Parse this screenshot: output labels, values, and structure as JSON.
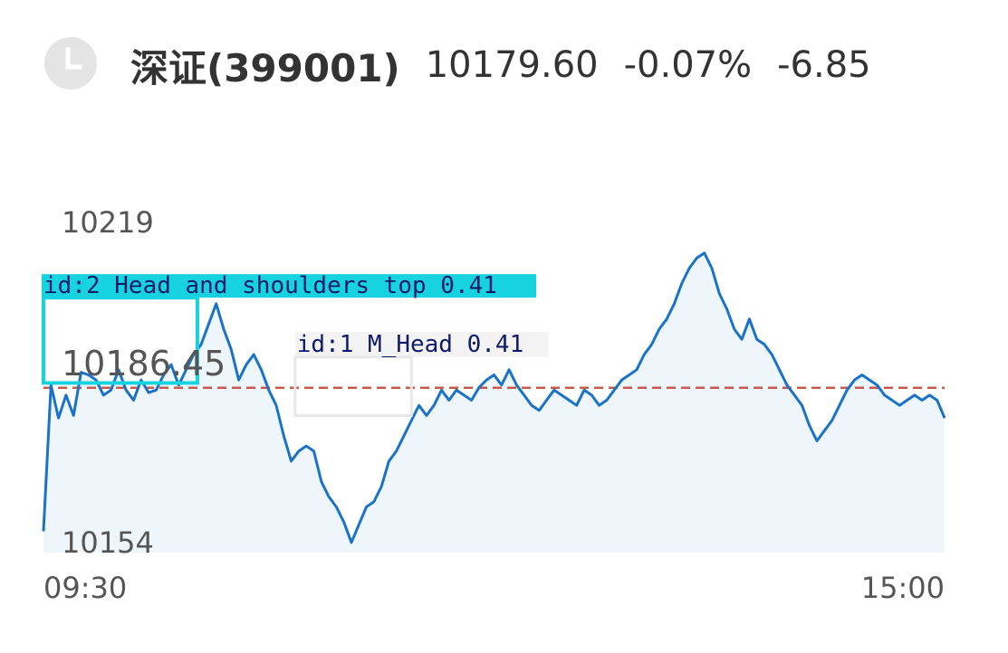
{
  "header": {
    "clock_icon": "clock-icon",
    "title": "深证(399001)",
    "price": "10179.60",
    "change_pct": "-0.07%",
    "change": "-6.85"
  },
  "colors": {
    "line": "#1a73c8",
    "area": "#eef6fc",
    "ref_line": "#c9594b",
    "det2": "#17d3e0",
    "det2_text": "#0f1a6b",
    "det1_box": "#e8e8e8",
    "det1_text": "#0f1a6b"
  },
  "chart_data": {
    "type": "line",
    "title": "",
    "xlabel": "",
    "ylabel": "",
    "x_ticks": [
      "09:30",
      "15:00"
    ],
    "y_top_label": "10219",
    "y_bottom_label": "10154",
    "ref_label": "10186.45",
    "ylim": [
      10154,
      10219
    ],
    "reference_value": 10186.45,
    "x_range": [
      0,
      240
    ],
    "series": [
      {
        "values": [
          [
            0,
            10158.2
          ],
          [
            2,
            10187.0
          ],
          [
            4,
            10180.5
          ],
          [
            6,
            10185.0
          ],
          [
            8,
            10181.0
          ],
          [
            10,
            10189.5
          ],
          [
            12,
            10189.0
          ],
          [
            14,
            10188.0
          ],
          [
            16,
            10185.0
          ],
          [
            18,
            10186.0
          ],
          [
            20,
            10190.0
          ],
          [
            22,
            10186.0
          ],
          [
            24,
            10184.0
          ],
          [
            26,
            10188.0
          ],
          [
            28,
            10185.5
          ],
          [
            30,
            10186.0
          ],
          [
            32,
            10189.0
          ],
          [
            34,
            10191.0
          ],
          [
            36,
            10187.0
          ],
          [
            38,
            10190.0
          ],
          [
            40,
            10193.0
          ],
          [
            42,
            10195.0
          ],
          [
            44,
            10199.0
          ],
          [
            46,
            10203.0
          ],
          [
            48,
            10198.0
          ],
          [
            50,
            10194.0
          ],
          [
            52,
            10188.0
          ],
          [
            54,
            10191.0
          ],
          [
            56,
            10193.0
          ],
          [
            58,
            10190.0
          ],
          [
            60,
            10186.0
          ],
          [
            62,
            10183.0
          ],
          [
            64,
            10177.0
          ],
          [
            66,
            10172.0
          ],
          [
            68,
            10174.0
          ],
          [
            70,
            10175.0
          ],
          [
            72,
            10174.0
          ],
          [
            74,
            10168.0
          ],
          [
            76,
            10165.0
          ],
          [
            78,
            10163.0
          ],
          [
            80,
            10160.0
          ],
          [
            82,
            10156.0
          ],
          [
            84,
            10159.5
          ],
          [
            86,
            10163.0
          ],
          [
            88,
            10164.0
          ],
          [
            90,
            10167.0
          ],
          [
            92,
            10172.0
          ],
          [
            94,
            10174.0
          ],
          [
            96,
            10177.0
          ],
          [
            98,
            10180.0
          ],
          [
            100,
            10183.0
          ],
          [
            102,
            10181.0
          ],
          [
            104,
            10183.0
          ],
          [
            106,
            10186.0
          ],
          [
            108,
            10184.0
          ],
          [
            110,
            10186.0
          ],
          [
            112,
            10185.0
          ],
          [
            114,
            10184.0
          ],
          [
            116,
            10186.5
          ],
          [
            118,
            10188.0
          ],
          [
            120,
            10189.0
          ],
          [
            122,
            10187.0
          ],
          [
            124,
            10190.0
          ],
          [
            126,
            10187.0
          ],
          [
            128,
            10185.0
          ],
          [
            130,
            10183.0
          ],
          [
            132,
            10182.0
          ],
          [
            134,
            10184.0
          ],
          [
            136,
            10186.0
          ],
          [
            138,
            10185.0
          ],
          [
            140,
            10184.0
          ],
          [
            142,
            10183.0
          ],
          [
            144,
            10186.0
          ],
          [
            146,
            10185.0
          ],
          [
            148,
            10183.0
          ],
          [
            150,
            10184.0
          ],
          [
            152,
            10186.0
          ],
          [
            154,
            10188.0
          ],
          [
            156,
            10189.0
          ],
          [
            158,
            10190.0
          ],
          [
            160,
            10193.0
          ],
          [
            162,
            10195.0
          ],
          [
            164,
            10198.0
          ],
          [
            166,
            10200.0
          ],
          [
            168,
            10203.0
          ],
          [
            170,
            10207.0
          ],
          [
            172,
            10210.0
          ],
          [
            174,
            10212.0
          ],
          [
            176,
            10213.0
          ],
          [
            178,
            10210.0
          ],
          [
            180,
            10205.0
          ],
          [
            182,
            10202.0
          ],
          [
            184,
            10198.0
          ],
          [
            186,
            10196.0
          ],
          [
            188,
            10200.0
          ],
          [
            190,
            10196.0
          ],
          [
            192,
            10195.0
          ],
          [
            194,
            10193.0
          ],
          [
            196,
            10190.0
          ],
          [
            198,
            10187.0
          ],
          [
            200,
            10185.0
          ],
          [
            202,
            10183.0
          ],
          [
            204,
            10179.0
          ],
          [
            206,
            10176.0
          ],
          [
            208,
            10178.0
          ],
          [
            210,
            10180.0
          ],
          [
            212,
            10183.0
          ],
          [
            214,
            10186.0
          ],
          [
            216,
            10188.0
          ],
          [
            218,
            10189.0
          ],
          [
            220,
            10188.0
          ],
          [
            222,
            10187.0
          ],
          [
            224,
            10185.0
          ],
          [
            226,
            10184.0
          ],
          [
            228,
            10183.0
          ],
          [
            230,
            10184.0
          ],
          [
            232,
            10185.0
          ],
          [
            234,
            10184.0
          ],
          [
            236,
            10185.0
          ],
          [
            238,
            10184.0
          ],
          [
            240,
            10180.5
          ]
        ]
      }
    ]
  },
  "detections": [
    {
      "label": "id:2 Head and shoulders top 0.41",
      "x0": 0,
      "x1": 41,
      "y0": 10187.4,
      "y1": 10204.2
    },
    {
      "label": "id:1 M_Head 0.41",
      "x0": 67,
      "x1": 98,
      "y0": 10181.0,
      "y1": 10192.5
    }
  ]
}
